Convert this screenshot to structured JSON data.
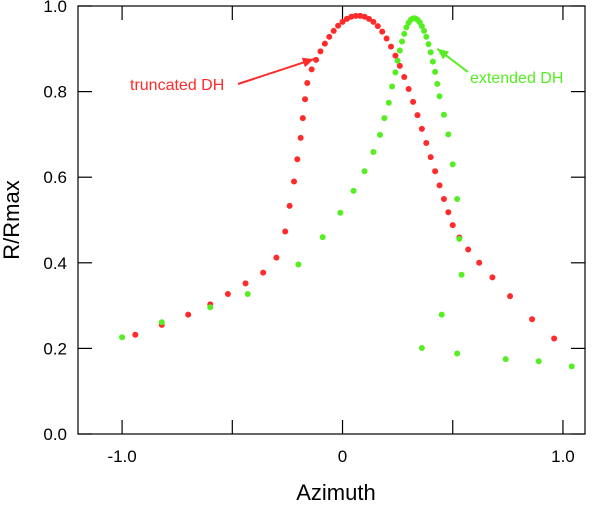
{
  "chart_data": {
    "type": "scatter",
    "xlabel": "Azimuth",
    "ylabel": "R/Rmax",
    "xlim": [
      -1.2,
      1.1
    ],
    "ylim": [
      0.0,
      1.0
    ],
    "x_ticks": [
      -1.0,
      -0.5,
      0.0,
      0.5,
      1.0
    ],
    "x_tick_labels": [
      "-1.0",
      "0",
      "1.0"
    ],
    "x_tick_label_values": [
      -1.0,
      0.0,
      1.0
    ],
    "y_ticks": [
      0.0,
      0.2,
      0.4,
      0.6,
      0.8,
      1.0
    ],
    "y_tick_labels": [
      "0.0",
      "0.2",
      "0.4",
      "0.6",
      "0.8",
      "1.0"
    ],
    "grid": false,
    "series": [
      {
        "name": "truncated DH",
        "color": "#ff2a2a",
        "points": [
          [
            -0.94,
            0.232
          ],
          [
            -0.82,
            0.255
          ],
          [
            -0.7,
            0.279
          ],
          [
            -0.6,
            0.303
          ],
          [
            -0.52,
            0.327
          ],
          [
            -0.44,
            0.352
          ],
          [
            -0.36,
            0.377
          ],
          [
            -0.3,
            0.412
          ],
          [
            -0.26,
            0.473
          ],
          [
            -0.24,
            0.533
          ],
          [
            -0.22,
            0.59
          ],
          [
            -0.205,
            0.642
          ],
          [
            -0.19,
            0.692
          ],
          [
            -0.18,
            0.738
          ],
          [
            -0.17,
            0.782
          ],
          [
            -0.16,
            0.82
          ],
          [
            -0.14,
            0.852
          ],
          [
            -0.12,
            0.874
          ],
          [
            -0.1,
            0.894
          ],
          [
            -0.08,
            0.912
          ],
          [
            -0.06,
            0.928
          ],
          [
            -0.04,
            0.942
          ],
          [
            -0.02,
            0.954
          ],
          [
            0.0,
            0.963
          ],
          [
            0.02,
            0.97
          ],
          [
            0.04,
            0.975
          ],
          [
            0.06,
            0.977
          ],
          [
            0.08,
            0.977
          ],
          [
            0.1,
            0.975
          ],
          [
            0.12,
            0.97
          ],
          [
            0.14,
            0.963
          ],
          [
            0.16,
            0.953
          ],
          [
            0.18,
            0.94
          ],
          [
            0.2,
            0.924
          ],
          [
            0.22,
            0.905
          ],
          [
            0.24,
            0.884
          ],
          [
            0.26,
            0.86
          ],
          [
            0.28,
            0.834
          ],
          [
            0.3,
            0.806
          ],
          [
            0.32,
            0.776
          ],
          [
            0.34,
            0.745
          ],
          [
            0.36,
            0.713
          ],
          [
            0.38,
            0.68
          ],
          [
            0.4,
            0.647
          ],
          [
            0.42,
            0.614
          ],
          [
            0.44,
            0.581
          ],
          [
            0.46,
            0.549
          ],
          [
            0.48,
            0.518
          ],
          [
            0.5,
            0.488
          ],
          [
            0.53,
            0.459
          ],
          [
            0.57,
            0.431
          ],
          [
            0.62,
            0.4
          ],
          [
            0.68,
            0.366
          ],
          [
            0.76,
            0.322
          ],
          [
            0.86,
            0.268
          ],
          [
            0.96,
            0.223
          ]
        ]
      },
      {
        "name": "extended DH",
        "color": "#55ee22",
        "points": [
          [
            -1.0,
            0.226
          ],
          [
            -0.82,
            0.261
          ],
          [
            -0.6,
            0.296
          ],
          [
            -0.43,
            0.327
          ],
          [
            -0.2,
            0.396
          ],
          [
            -0.09,
            0.46
          ],
          [
            -0.01,
            0.517
          ],
          [
            0.05,
            0.568
          ],
          [
            0.1,
            0.614
          ],
          [
            0.14,
            0.659
          ],
          [
            0.17,
            0.699
          ],
          [
            0.19,
            0.738
          ],
          [
            0.21,
            0.774
          ],
          [
            0.225,
            0.812
          ],
          [
            0.24,
            0.845
          ],
          [
            0.25,
            0.872
          ],
          [
            0.26,
            0.896
          ],
          [
            0.27,
            0.917
          ],
          [
            0.28,
            0.935
          ],
          [
            0.29,
            0.95
          ],
          [
            0.3,
            0.961
          ],
          [
            0.31,
            0.968
          ],
          [
            0.32,
            0.971
          ],
          [
            0.33,
            0.971
          ],
          [
            0.34,
            0.968
          ],
          [
            0.35,
            0.962
          ],
          [
            0.36,
            0.953
          ],
          [
            0.37,
            0.942
          ],
          [
            0.38,
            0.928
          ],
          [
            0.39,
            0.911
          ],
          [
            0.4,
            0.892
          ],
          [
            0.41,
            0.87
          ],
          [
            0.42,
            0.846
          ],
          [
            0.43,
            0.818
          ],
          [
            0.44,
            0.789
          ],
          [
            0.46,
            0.746
          ],
          [
            0.48,
            0.7
          ],
          [
            0.5,
            0.63
          ],
          [
            0.52,
            0.549
          ],
          [
            0.53,
            0.456
          ],
          [
            0.54,
            0.372
          ],
          [
            0.45,
            0.279
          ],
          [
            0.36,
            0.201
          ],
          [
            0.52,
            0.188
          ],
          [
            0.74,
            0.175
          ],
          [
            0.89,
            0.17
          ],
          [
            1.04,
            0.158
          ]
        ]
      }
    ],
    "annotations": [
      {
        "text": "truncated DH",
        "series": "truncated DH",
        "color": "#ff2a2a",
        "arrow_to": [
          -0.13,
          0.876
        ]
      },
      {
        "text": "extended DH",
        "series": "extended DH",
        "color": "#55ee22",
        "arrow_to": [
          0.43,
          0.9
        ]
      }
    ]
  }
}
